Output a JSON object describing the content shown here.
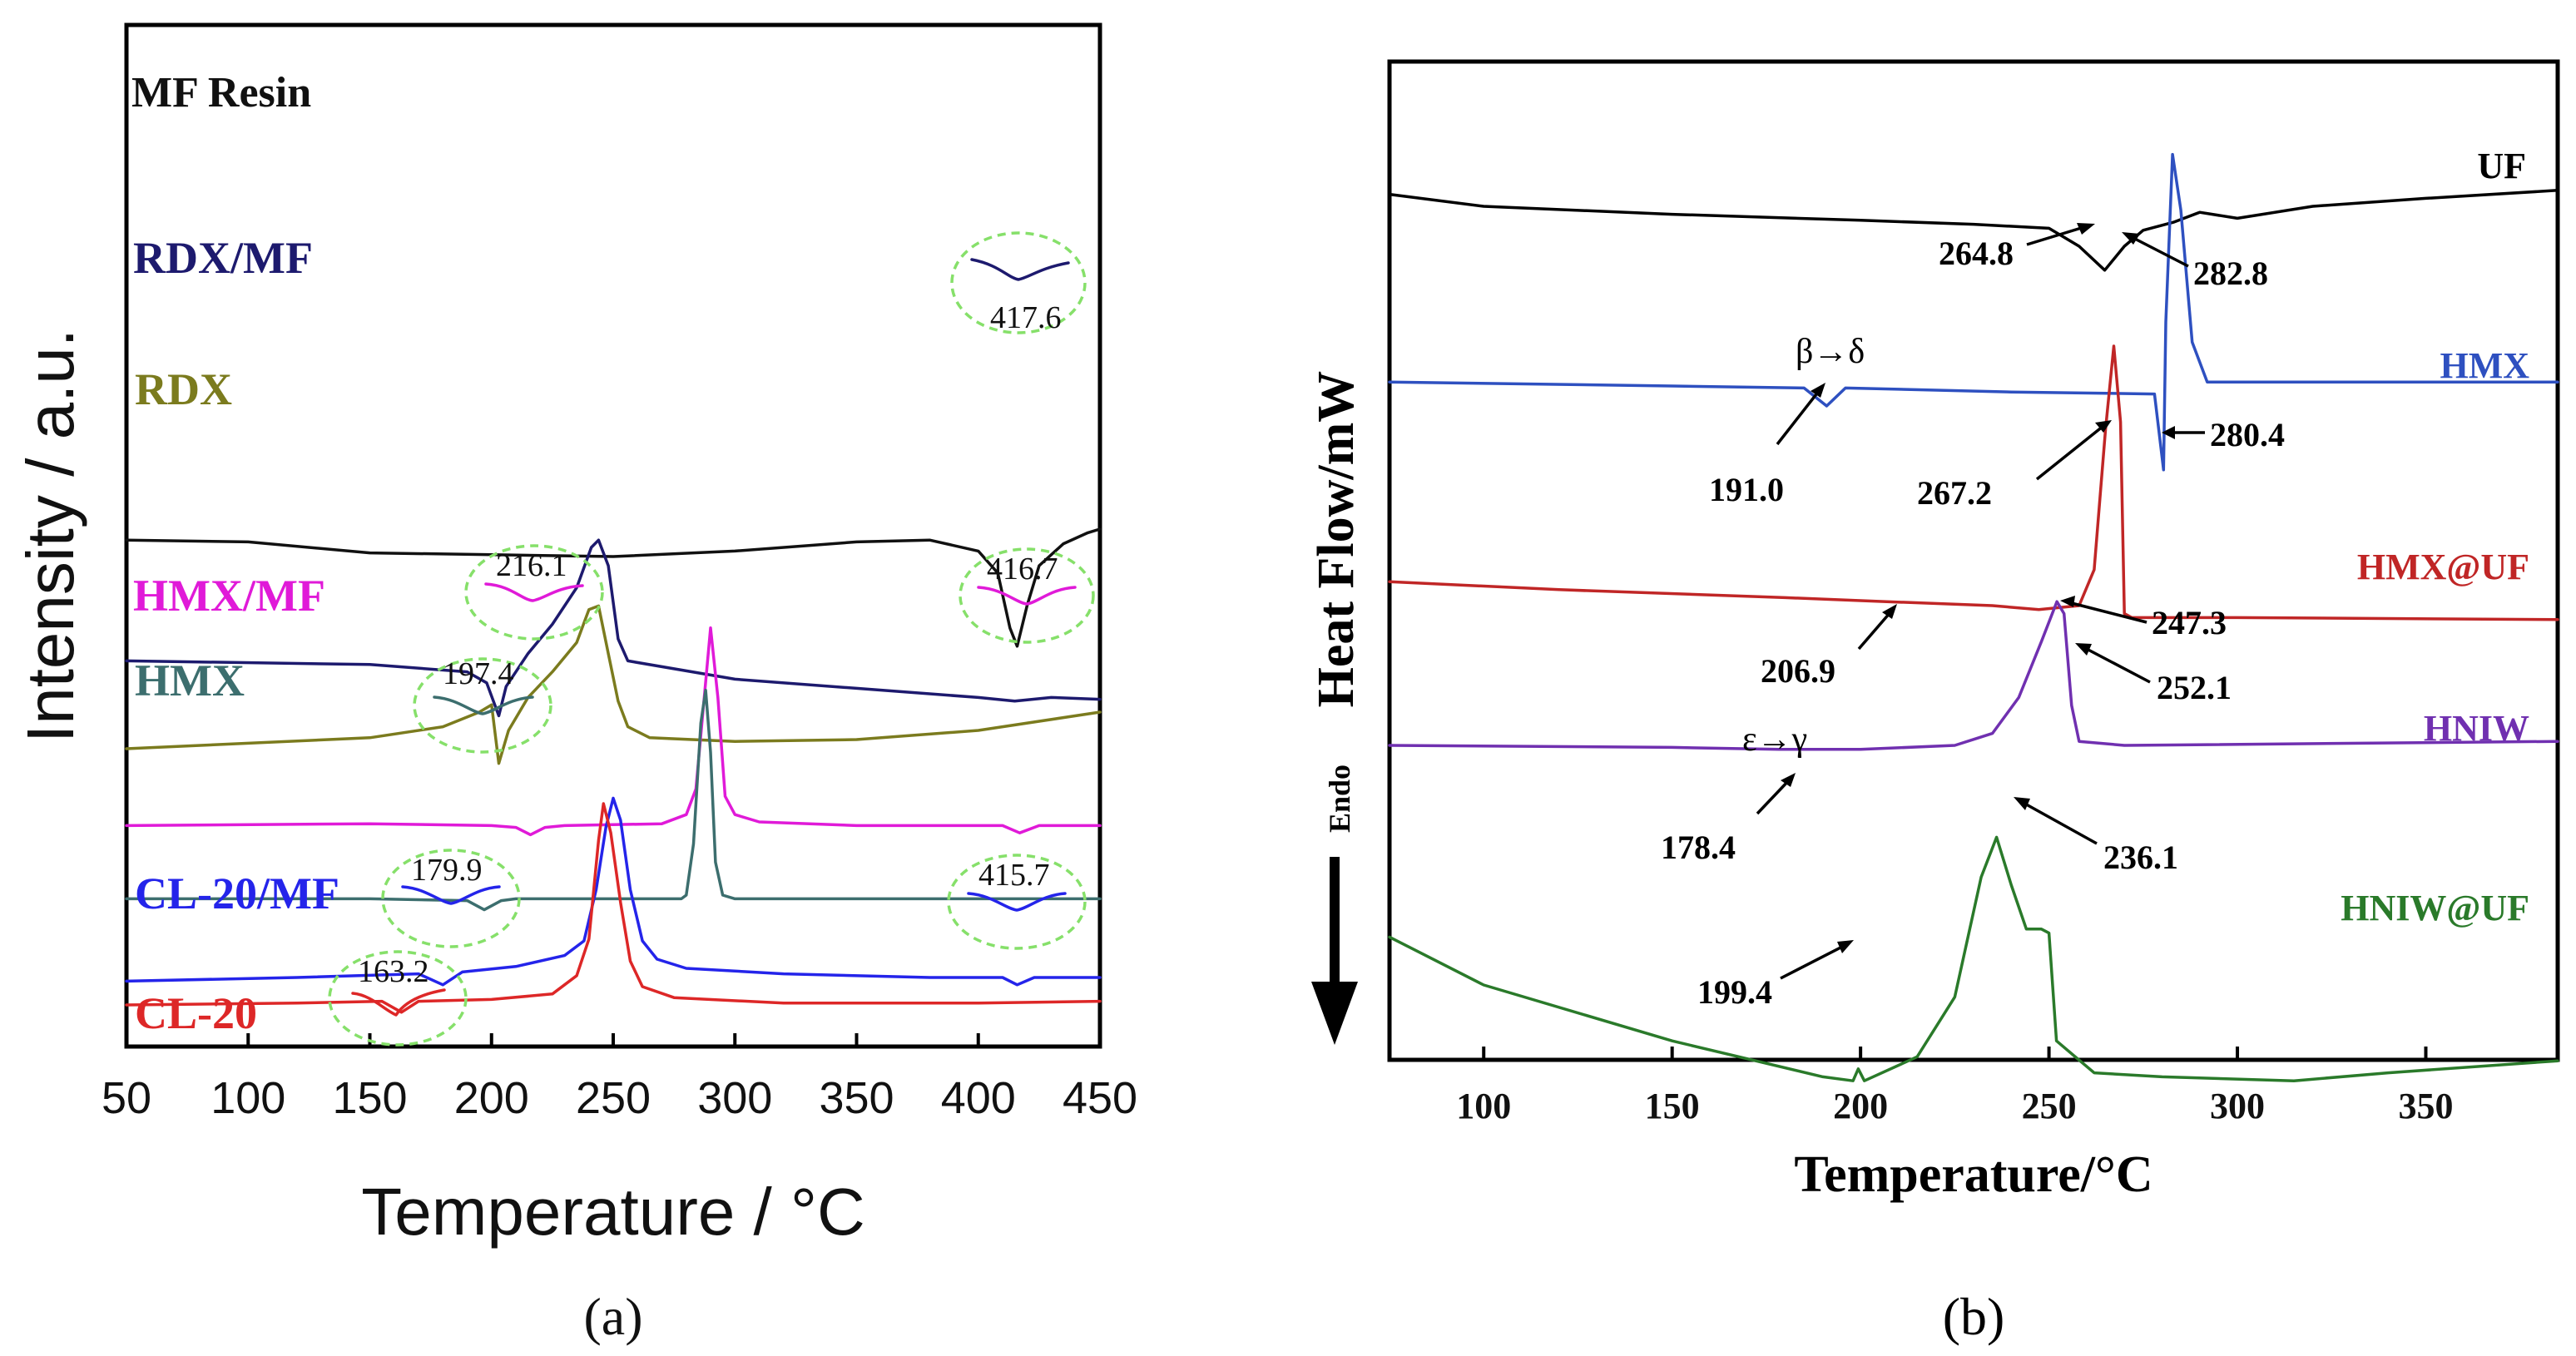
{
  "chart_data": [
    {
      "panel": "(a)",
      "type": "line",
      "xlabel": "Temperature / °C",
      "ylabel": "Intensity / a.u.",
      "xlim": [
        50,
        450
      ],
      "xticks": [
        50,
        100,
        150,
        200,
        250,
        300,
        350,
        400,
        450
      ],
      "series": [
        {
          "name": "MF Resin",
          "color": "#111111",
          "offset": 12.3,
          "points": [
            [
              50,
              0.4
            ],
            [
              100,
              0.35
            ],
            [
              150,
              0.05
            ],
            [
              200,
              0
            ],
            [
              250,
              -0.05
            ],
            [
              300,
              0.1
            ],
            [
              350,
              0.35
            ],
            [
              380,
              0.4
            ],
            [
              400,
              0.1
            ],
            [
              408,
              -0.5
            ],
            [
              413,
              -2.0
            ],
            [
              416,
              -2.5
            ],
            [
              420,
              -1.4
            ],
            [
              425,
              -0.3
            ],
            [
              435,
              0.3
            ],
            [
              445,
              0.6
            ],
            [
              450,
              0.7
            ]
          ]
        },
        {
          "name": "RDX/MF",
          "color": "#1d1a6e",
          "offset": 9.4,
          "points": [
            [
              50,
              0
            ],
            [
              150,
              -0.1
            ],
            [
              190,
              -0.3
            ],
            [
              198,
              -0.6
            ],
            [
              203,
              -1.5
            ],
            [
              206,
              -0.7
            ],
            [
              215,
              0.2
            ],
            [
              225,
              1.0
            ],
            [
              235,
              2.0
            ],
            [
              241,
              3.1
            ],
            [
              244,
              3.3
            ],
            [
              248,
              2.6
            ],
            [
              252,
              0.6
            ],
            [
              256,
              0
            ],
            [
              300,
              -0.5
            ],
            [
              350,
              -0.75
            ],
            [
              400,
              -1.0
            ],
            [
              415,
              -1.1
            ],
            [
              430,
              -1.0
            ],
            [
              450,
              -1.05
            ]
          ]
        },
        {
          "name": "RDX",
          "color": "#7b7b1e",
          "offset": 7.0,
          "points": [
            [
              50,
              0
            ],
            [
              150,
              0.3
            ],
            [
              180,
              0.6
            ],
            [
              195,
              1.0
            ],
            [
              200,
              1.2
            ],
            [
              203,
              -0.4
            ],
            [
              207,
              0.5
            ],
            [
              215,
              1.4
            ],
            [
              225,
              2.1
            ],
            [
              235,
              2.9
            ],
            [
              240,
              3.8
            ],
            [
              244,
              3.9
            ],
            [
              248,
              2.6
            ],
            [
              252,
              1.3
            ],
            [
              256,
              0.6
            ],
            [
              265,
              0.3
            ],
            [
              300,
              0.2
            ],
            [
              350,
              0.25
            ],
            [
              400,
              0.5
            ],
            [
              450,
              1.0
            ]
          ]
        },
        {
          "name": "HMX/MF",
          "color": "#e01ad8",
          "offset": 4.9,
          "points": [
            [
              50,
              0
            ],
            [
              150,
              0.05
            ],
            [
              200,
              0
            ],
            [
              210,
              -0.05
            ],
            [
              216,
              -0.25
            ],
            [
              222,
              -0.05
            ],
            [
              230,
              0
            ],
            [
              270,
              0.05
            ],
            [
              280,
              0.3
            ],
            [
              284,
              1.0
            ],
            [
              287,
              3.2
            ],
            [
              290,
              5.4
            ],
            [
              293,
              3.5
            ],
            [
              296,
              0.8
            ],
            [
              300,
              0.3
            ],
            [
              310,
              0.1
            ],
            [
              350,
              0
            ],
            [
              410,
              0
            ],
            [
              417,
              -0.2
            ],
            [
              425,
              0
            ],
            [
              450,
              0
            ]
          ]
        },
        {
          "name": "HMX",
          "color": "#3c6e6e",
          "offset": 2.9,
          "points": [
            [
              50,
              0
            ],
            [
              150,
              0
            ],
            [
              190,
              -0.05
            ],
            [
              197,
              -0.3
            ],
            [
              204,
              -0.05
            ],
            [
              210,
              0
            ],
            [
              278,
              0
            ],
            [
              280,
              0.1
            ],
            [
              283,
              1.5
            ],
            [
              286,
              4.8
            ],
            [
              288,
              5.7
            ],
            [
              290,
              4.0
            ],
            [
              292,
              1.0
            ],
            [
              295,
              0.1
            ],
            [
              300,
              0
            ],
            [
              450,
              0
            ]
          ]
        },
        {
          "name": "CL-20/MF",
          "color": "#2424ea",
          "offset": 0.65,
          "points": [
            [
              50,
              0
            ],
            [
              120,
              0.1
            ],
            [
              170,
              0.2
            ],
            [
              180,
              -0.1
            ],
            [
              188,
              0.25
            ],
            [
              210,
              0.4
            ],
            [
              230,
              0.7
            ],
            [
              238,
              1.1
            ],
            [
              243,
              2.5
            ],
            [
              247,
              4.2
            ],
            [
              250,
              5.0
            ],
            [
              253,
              4.4
            ],
            [
              257,
              2.5
            ],
            [
              262,
              1.1
            ],
            [
              268,
              0.6
            ],
            [
              280,
              0.35
            ],
            [
              320,
              0.2
            ],
            [
              380,
              0.1
            ],
            [
              410,
              0.1
            ],
            [
              416,
              -0.1
            ],
            [
              423,
              0.1
            ],
            [
              450,
              0.1
            ]
          ]
        },
        {
          "name": "CL-20",
          "color": "#dd2727",
          "offset": 0,
          "points": [
            [
              50,
              0
            ],
            [
              120,
              0.05
            ],
            [
              155,
              0.1
            ],
            [
              163,
              -0.2
            ],
            [
              170,
              0.1
            ],
            [
              200,
              0.15
            ],
            [
              225,
              0.3
            ],
            [
              235,
              0.8
            ],
            [
              240,
              1.8
            ],
            [
              244,
              4.5
            ],
            [
              246,
              5.5
            ],
            [
              249,
              4.7
            ],
            [
              253,
              2.8
            ],
            [
              257,
              1.2
            ],
            [
              262,
              0.5
            ],
            [
              275,
              0.2
            ],
            [
              320,
              0.05
            ],
            [
              400,
              0.05
            ],
            [
              450,
              0.1
            ]
          ]
        }
      ],
      "annotations": [
        {
          "text": "417.6",
          "x": 417.6,
          "series": "RDX/MF"
        },
        {
          "text": "216.1",
          "x": 216.1,
          "series": "HMX/MF"
        },
        {
          "text": "416.7",
          "x": 416.7,
          "series": "HMX/MF"
        },
        {
          "text": "197.4",
          "x": 197.4,
          "series": "HMX"
        },
        {
          "text": "179.9",
          "x": 179.9,
          "series": "CL-20/MF"
        },
        {
          "text": "415.7",
          "x": 415.7,
          "series": "CL-20/MF"
        },
        {
          "text": "163.2",
          "x": 163.2,
          "series": "CL-20"
        }
      ]
    },
    {
      "panel": "(b)",
      "type": "line",
      "xlabel": "Temperature/°C",
      "ylabel": "Heat Flow/mW",
      "endo_label": "Endo",
      "xlim": [
        75,
        385
      ],
      "xticks": [
        100,
        150,
        200,
        250,
        300,
        350
      ],
      "series": [
        {
          "name": "UF",
          "color": "#000000",
          "offset": 13.8,
          "points": [
            [
              75,
              0
            ],
            [
              100,
              -0.3
            ],
            [
              150,
              -0.5
            ],
            [
              200,
              -0.65
            ],
            [
              230,
              -0.75
            ],
            [
              250,
              -0.85
            ],
            [
              258,
              -1.3
            ],
            [
              264.8,
              -1.9
            ],
            [
              270,
              -1.3
            ],
            [
              275,
              -0.9
            ],
            [
              283,
              -0.7
            ],
            [
              290,
              -0.45
            ],
            [
              300,
              -0.6
            ],
            [
              320,
              -0.3
            ],
            [
              350,
              -0.1
            ],
            [
              385,
              0.1
            ]
          ]
        },
        {
          "name": "HMX",
          "color": "#2e50c0",
          "offset": 9.1,
          "points": [
            [
              75,
              0
            ],
            [
              150,
              -0.1
            ],
            [
              185,
              -0.15
            ],
            [
              191,
              -0.6
            ],
            [
              196,
              -0.15
            ],
            [
              240,
              -0.25
            ],
            [
              278,
              -0.3
            ],
            [
              280.4,
              -2.2
            ],
            [
              281,
              1.5
            ],
            [
              282.8,
              5.7
            ],
            [
              285,
              4.3
            ],
            [
              288,
              1.0
            ],
            [
              292,
              0
            ],
            [
              320,
              0
            ],
            [
              385,
              0
            ]
          ]
        },
        {
          "name": "HMX@UF",
          "color": "#c02626",
          "offset": 4.1,
          "points": [
            [
              75,
              0
            ],
            [
              120,
              -0.2
            ],
            [
              180,
              -0.4
            ],
            [
              206.9,
              -0.5
            ],
            [
              235,
              -0.6
            ],
            [
              247.3,
              -0.7
            ],
            [
              258,
              -0.6
            ],
            [
              262,
              0.3
            ],
            [
              265,
              3.8
            ],
            [
              267.2,
              5.9
            ],
            [
              269,
              4.0
            ],
            [
              270,
              -0.8
            ],
            [
              272,
              -0.9
            ],
            [
              300,
              -0.9
            ],
            [
              385,
              -0.95
            ]
          ]
        },
        {
          "name": "HNIW",
          "color": "#7030b0",
          "offset": 0.0,
          "points": [
            [
              75,
              0
            ],
            [
              150,
              -0.05
            ],
            [
              178.4,
              -0.1
            ],
            [
              200,
              -0.1
            ],
            [
              225,
              0
            ],
            [
              235,
              0.3
            ],
            [
              242,
              1.2
            ],
            [
              248,
              2.6
            ],
            [
              252.1,
              3.6
            ],
            [
              254,
              3.3
            ],
            [
              256,
              1.0
            ],
            [
              258,
              0.1
            ],
            [
              270,
              0
            ],
            [
              385,
              0.1
            ]
          ]
        },
        {
          "name": "HNIW@UF",
          "color": "#2a7a2a",
          "offset": -4.8,
          "points": [
            [
              75,
              0
            ],
            [
              100,
              -1.2
            ],
            [
              150,
              -2.6
            ],
            [
              190,
              -3.5
            ],
            [
              198,
              -3.6
            ],
            [
              199.4,
              -3.3
            ],
            [
              201,
              -3.6
            ],
            [
              215,
              -3.0
            ],
            [
              225,
              -1.5
            ],
            [
              232,
              1.5
            ],
            [
              236.1,
              2.5
            ],
            [
              240,
              1.3
            ],
            [
              244,
              0.2
            ],
            [
              248,
              0.2
            ],
            [
              250,
              0.1
            ],
            [
              252,
              -2.6
            ],
            [
              262,
              -3.4
            ],
            [
              280,
              -3.5
            ],
            [
              315,
              -3.6
            ],
            [
              340,
              -3.4
            ],
            [
              385,
              -3.1
            ]
          ]
        }
      ],
      "annotations": [
        {
          "text": "264.8"
        },
        {
          "text": "282.8"
        },
        {
          "text": "β→δ"
        },
        {
          "text": "191.0"
        },
        {
          "text": "280.4"
        },
        {
          "text": "267.2"
        },
        {
          "text": "247.3"
        },
        {
          "text": "206.9"
        },
        {
          "text": "252.1"
        },
        {
          "text": "ε→γ"
        },
        {
          "text": "178.4"
        },
        {
          "text": "236.1"
        },
        {
          "text": "199.4"
        }
      ]
    }
  ]
}
